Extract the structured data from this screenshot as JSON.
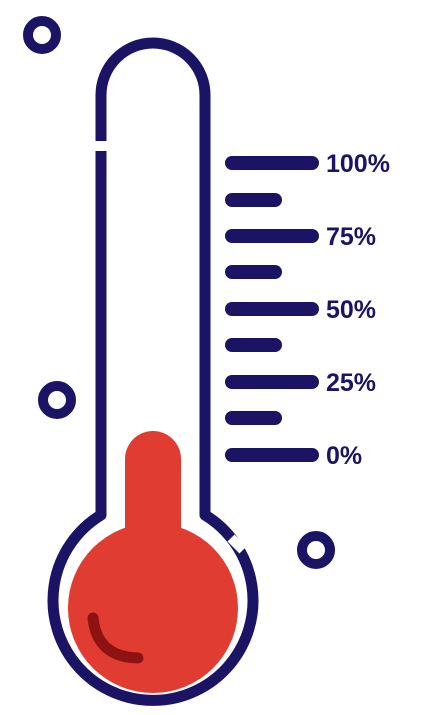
{
  "thermometer": {
    "fill_level_percent": 0,
    "outline_color": "#1b1464",
    "mercury_color": "#e03c31",
    "highlight_color": "#8e1212",
    "background_color": "#ffffff"
  },
  "scale": {
    "labels": [
      "100%",
      "75%",
      "50%",
      "25%",
      "0%"
    ]
  },
  "decorations": {
    "icon": "ring-icon",
    "count": 3
  }
}
